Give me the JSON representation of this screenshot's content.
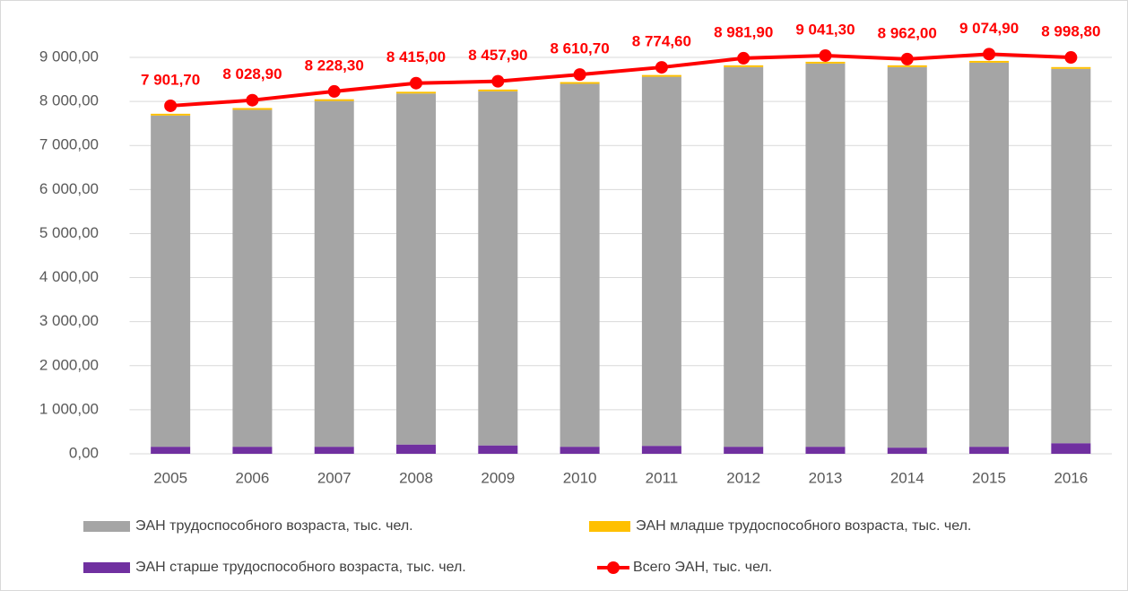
{
  "chart_data": {
    "type": "bar-line",
    "categories": [
      "2005",
      "2006",
      "2007",
      "2008",
      "2009",
      "2010",
      "2011",
      "2012",
      "2013",
      "2014",
      "2015",
      "2016"
    ],
    "series": [
      {
        "name": "ЭАН трудоспособного возраста, тыс. чел.",
        "color": "#a5a5a5",
        "type": "bar",
        "values": [
          7520,
          7650,
          7850,
          7970,
          8040,
          8240,
          8380,
          8620,
          8700,
          8640,
          8720,
          8500
        ]
      },
      {
        "name": "ЭАН младше трудоспособного возраста, тыс. чел.",
        "color": "#ffc000",
        "type": "bar",
        "values": [
          40,
          40,
          40,
          40,
          40,
          40,
          40,
          40,
          40,
          40,
          40,
          40
        ]
      },
      {
        "name": "ЭАН старше трудоспособного возраста, тыс. чел.",
        "color": "#7030a0",
        "type": "bar",
        "values": [
          160,
          160,
          160,
          210,
          190,
          160,
          180,
          160,
          160,
          140,
          160,
          240
        ]
      },
      {
        "name": "Всего ЭАН, тыс. чел.",
        "color": "#ff0000",
        "type": "line",
        "values": [
          7901.7,
          8028.9,
          8228.3,
          8415,
          8457.9,
          8610.7,
          8774.6,
          8981.9,
          9041.3,
          8962,
          9074.9,
          8998.8
        ],
        "value_labels": [
          "7 901,70",
          "8 028,90",
          "8 228,30",
          "8 415,00",
          "8 457,90",
          "8 610,70",
          "8 774,60",
          "8 981,90",
          "9 041,30",
          "8 962,00",
          "9 074,90",
          "8 998,80"
        ]
      }
    ],
    "ylim": [
      0,
      9000
    ],
    "yticks": [
      {
        "value": 0,
        "label": "0,00"
      },
      {
        "value": 1000,
        "label": "1 000,00"
      },
      {
        "value": 2000,
        "label": "2 000,00"
      },
      {
        "value": 3000,
        "label": "3 000,00"
      },
      {
        "value": 4000,
        "label": "4 000,00"
      },
      {
        "value": 5000,
        "label": "5 000,00"
      },
      {
        "value": 6000,
        "label": "6 000,00"
      },
      {
        "value": 7000,
        "label": "7 000,00"
      },
      {
        "value": 8000,
        "label": "8 000,00"
      },
      {
        "value": 9000,
        "label": "9 000,00"
      }
    ],
    "grid": true,
    "legend": "bottom"
  }
}
